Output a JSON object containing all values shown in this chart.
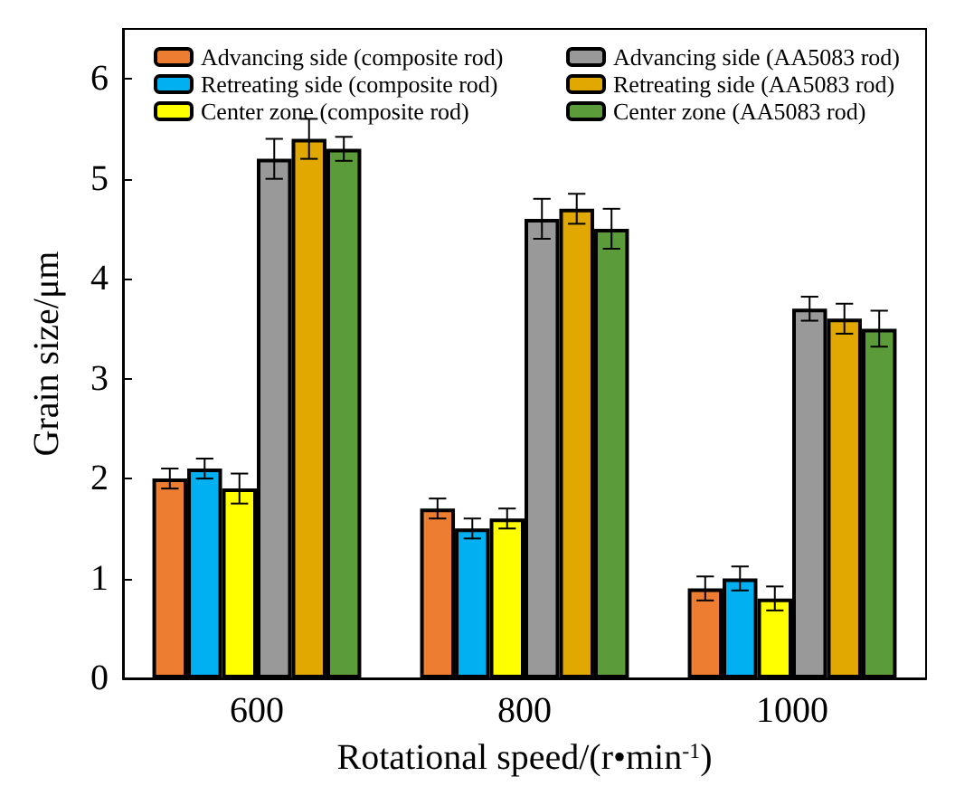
{
  "chart_data": {
    "type": "bar",
    "xlabel": "Rotational speed/(r•min$^{-1}$)",
    "ylabel": "Grain size/μm",
    "categories": [
      "600",
      "800",
      "1000"
    ],
    "ylim": [
      0,
      6.5
    ],
    "yticks": [
      0,
      1,
      2,
      3,
      4,
      5,
      6
    ],
    "grid": false,
    "legend": "top",
    "series": [
      {
        "name": "Advancing side (composite rod)",
        "color": "#ed7d31",
        "values": [
          2.0,
          1.7,
          0.9
        ],
        "errors": [
          0.1,
          0.1,
          0.12
        ]
      },
      {
        "name": "Retreating side (composite rod)",
        "color": "#00b0f0",
        "values": [
          2.1,
          1.5,
          1.0
        ],
        "errors": [
          0.1,
          0.1,
          0.12
        ]
      },
      {
        "name": "Center zone (composite rod)",
        "color": "#ffff00",
        "values": [
          1.9,
          1.6,
          0.8
        ],
        "errors": [
          0.15,
          0.1,
          0.12
        ]
      },
      {
        "name": "Advancing side (AA5083 rod)",
        "color": "#999999",
        "values": [
          5.2,
          4.6,
          3.7
        ],
        "errors": [
          0.2,
          0.2,
          0.12
        ]
      },
      {
        "name": "Retreating side (AA5083 rod)",
        "color": "#e0a800",
        "values": [
          5.4,
          4.7,
          3.6
        ],
        "errors": [
          0.2,
          0.15,
          0.15
        ]
      },
      {
        "name": "Center zone (AA5083 rod)",
        "color": "#5b9b3a",
        "values": [
          5.3,
          4.5,
          3.5
        ],
        "errors": [
          0.12,
          0.2,
          0.18
        ]
      }
    ]
  }
}
